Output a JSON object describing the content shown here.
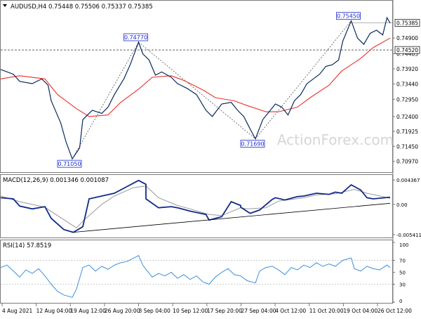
{
  "chart_data": [
    {
      "panel": "price",
      "type": "line",
      "title": "AUDUSD,H4 0.75448 0.75506 0.75337 0.75385",
      "symbol": "AUDUSD,H4",
      "ohlc_readout": [
        "0.75448",
        "0.75506",
        "0.75337",
        "0.75385"
      ],
      "ylim": [
        0.7065,
        0.758
      ],
      "y_ticks": [
        0.7097,
        0.7145,
        0.71925,
        0.724,
        0.7295,
        0.7344,
        0.7392,
        0.74405,
        0.749
      ],
      "y_tick_labels": [
        "0.70970",
        "0.71450",
        "0.71925",
        "0.72400",
        "0.72950",
        "0.73440",
        "0.73920",
        "0.74405",
        "0.74900"
      ],
      "current_price": 0.75385,
      "current_price_label": "0.75385",
      "horizontal_line": {
        "value": 0.7452,
        "label": "0.74520",
        "style": "dashed"
      },
      "annotations": [
        {
          "x": "19 Aug 2021 08:00",
          "value": 0.7105,
          "label": "0.71050"
        },
        {
          "x": "2 Sep 2021 20:00",
          "value": 0.7477,
          "label": "0.74770"
        },
        {
          "x": "29 Sep 2021 08:00",
          "value": 0.7169,
          "label": "0.71690"
        },
        {
          "x": "20 Oct 2021 12:00",
          "value": 0.7545,
          "label": "0.75450"
        }
      ],
      "x_labels": [
        "4 Aug 2021",
        "12 Aug 04:00",
        "19 Aug 12:00",
        "26 Aug 20:00",
        "3 Sep 04:00",
        "10 Sep 12:00",
        "17 Sep 20:00",
        "27 Sep 04:00",
        "4 Oct 12:00",
        "11 Oct 20:00",
        "19 Oct 04:00",
        "26 Oct 12:00"
      ],
      "price_path": [
        {
          "x": "4 Aug 2021 00:00",
          "y": 0.739
        },
        {
          "x": "6 Aug 2021 00:00",
          "y": 0.7375
        },
        {
          "x": "9 Aug 2021 00:00",
          "y": 0.7352
        },
        {
          "x": "11 Aug 2021 00:00",
          "y": 0.7345
        },
        {
          "x": "12 Aug 2021 12:00",
          "y": 0.736
        },
        {
          "x": "13 Aug 2021 12:00",
          "y": 0.734
        },
        {
          "x": "16 Aug 2021 00:00",
          "y": 0.729
        },
        {
          "x": "17 Aug 2021 12:00",
          "y": 0.722
        },
        {
          "x": "18 Aug 2021 08:00",
          "y": 0.716
        },
        {
          "x": "19 Aug 2021 08:00",
          "y": 0.7105
        },
        {
          "x": "20 Aug 2021 12:00",
          "y": 0.714
        },
        {
          "x": "23 Aug 2021 00:00",
          "y": 0.723
        },
        {
          "x": "24 Aug 2021 12:00",
          "y": 0.726
        },
        {
          "x": "26 Aug 2021 00:00",
          "y": 0.725
        },
        {
          "x": "27 Aug 2021 00:00",
          "y": 0.727
        },
        {
          "x": "30 Aug 2021 00:00",
          "y": 0.731
        },
        {
          "x": "31 Aug 2021 12:00",
          "y": 0.736
        },
        {
          "x": "1 Sep 2021 12:00",
          "y": 0.7405
        },
        {
          "x": "2 Sep 2021 20:00",
          "y": 0.7477
        },
        {
          "x": "3 Sep 2021 12:00",
          "y": 0.744
        },
        {
          "x": "6 Sep 2021 12:00",
          "y": 0.742
        },
        {
          "x": "7 Sep 2021 12:00",
          "y": 0.7372
        },
        {
          "x": "8 Sep 2021 12:00",
          "y": 0.7382
        },
        {
          "x": "10 Sep 2021 00:00",
          "y": 0.7365
        },
        {
          "x": "13 Sep 2021 00:00",
          "y": 0.7345
        },
        {
          "x": "14 Sep 2021 12:00",
          "y": 0.733
        },
        {
          "x": "16 Sep 2021 00:00",
          "y": 0.731
        },
        {
          "x": "17 Sep 2021 12:00",
          "y": 0.726
        },
        {
          "x": "20 Sep 2021 12:00",
          "y": 0.724
        },
        {
          "x": "22 Sep 2021 00:00",
          "y": 0.728
        },
        {
          "x": "23 Sep 2021 12:00",
          "y": 0.7285
        },
        {
          "x": "24 Sep 2021 12:00",
          "y": 0.726
        },
        {
          "x": "27 Sep 2021 12:00",
          "y": 0.724
        },
        {
          "x": "28 Sep 2021 12:00",
          "y": 0.72
        },
        {
          "x": "29 Sep 2021 08:00",
          "y": 0.7169
        },
        {
          "x": "30 Sep 2021 12:00",
          "y": 0.723
        },
        {
          "x": "1 Oct 2021 12:00",
          "y": 0.7255
        },
        {
          "x": "4 Oct 2021 12:00",
          "y": 0.728
        },
        {
          "x": "5 Oct 2021 12:00",
          "y": 0.727
        },
        {
          "x": "6 Oct 2021 12:00",
          "y": 0.7245
        },
        {
          "x": "7 Oct 2021 12:00",
          "y": 0.729
        },
        {
          "x": "8 Oct 2021 12:00",
          "y": 0.731
        },
        {
          "x": "11 Oct 2021 12:00",
          "y": 0.7345
        },
        {
          "x": "12 Oct 2021 12:00",
          "y": 0.736
        },
        {
          "x": "13 Oct 2021 12:00",
          "y": 0.7375
        },
        {
          "x": "14 Oct 2021 12:00",
          "y": 0.74
        },
        {
          "x": "15 Oct 2021 12:00",
          "y": 0.7405
        },
        {
          "x": "18 Oct 2021 12:00",
          "y": 0.742
        },
        {
          "x": "19 Oct 2021 04:00",
          "y": 0.748
        },
        {
          "x": "20 Oct 2021 12:00",
          "y": 0.7545
        },
        {
          "x": "21 Oct 2021 12:00",
          "y": 0.749
        },
        {
          "x": "22 Oct 2021 12:00",
          "y": 0.747
        },
        {
          "x": "25 Oct 2021 12:00",
          "y": 0.7505
        },
        {
          "x": "26 Oct 2021 12:00",
          "y": 0.7515
        },
        {
          "x": "27 Oct 2021 12:00",
          "y": 0.75
        },
        {
          "x": "28 Oct 2021 04:00",
          "y": 0.7555
        },
        {
          "x": "28 Oct 2021 16:00",
          "y": 0.7538
        }
      ],
      "moving_average_path": [
        {
          "x": "4 Aug 2021 00:00",
          "y": 0.736
        },
        {
          "x": "9 Aug 2021 00:00",
          "y": 0.737
        },
        {
          "x": "13 Aug 2021 00:00",
          "y": 0.736
        },
        {
          "x": "17 Aug 2021 00:00",
          "y": 0.731
        },
        {
          "x": "20 Aug 2021 00:00",
          "y": 0.7265
        },
        {
          "x": "24 Aug 2021 00:00",
          "y": 0.724
        },
        {
          "x": "27 Aug 2021 00:00",
          "y": 0.7245
        },
        {
          "x": "31 Aug 2021 00:00",
          "y": 0.7285
        },
        {
          "x": "3 Sep 2021 00:00",
          "y": 0.733
        },
        {
          "x": "7 Sep 2021 00:00",
          "y": 0.7365
        },
        {
          "x": "10 Sep 2021 00:00",
          "y": 0.737
        },
        {
          "x": "14 Sep 2021 00:00",
          "y": 0.7355
        },
        {
          "x": "17 Sep 2021 00:00",
          "y": 0.7325
        },
        {
          "x": "21 Sep 2021 00:00",
          "y": 0.73
        },
        {
          "x": "24 Sep 2021 00:00",
          "y": 0.729
        },
        {
          "x": "28 Sep 2021 00:00",
          "y": 0.7275
        },
        {
          "x": "1 Oct 2021 00:00",
          "y": 0.7255
        },
        {
          "x": "5 Oct 2021 00:00",
          "y": 0.7255
        },
        {
          "x": "8 Oct 2021 00:00",
          "y": 0.727
        },
        {
          "x": "12 Oct 2021 00:00",
          "y": 0.73
        },
        {
          "x": "15 Oct 2021 00:00",
          "y": 0.734
        },
        {
          "x": "19 Oct 2021 00:00",
          "y": 0.7385
        },
        {
          "x": "22 Oct 2021 00:00",
          "y": 0.7425
        },
        {
          "x": "26 Oct 2021 00:00",
          "y": 0.746
        },
        {
          "x": "28 Oct 2021 16:00",
          "y": 0.749
        }
      ],
      "colors": {
        "price": "#0a2a5e",
        "moving_average": "#e8322a",
        "price_box": "#1c2bd1",
        "frame": "#7a7a7a"
      },
      "watermark": "ActionForex.com"
    },
    {
      "panel": "macd",
      "type": "line",
      "title": "MACD(12,26,9) 0.001346 0.001087",
      "indicator": "MACD(12,26,9)",
      "readout": [
        "0.001346",
        "0.001087"
      ],
      "ylim": [
        -0.0058,
        0.0049
      ],
      "y_ticks": [
        0.004367,
        0.0,
        -0.005411
      ],
      "y_tick_labels": [
        "0.004367",
        "0.00",
        "-0.005411"
      ],
      "macd_path": [
        {
          "x": "4 Aug 2021 00:00",
          "y": 0.0012
        },
        {
          "x": "6 Aug 2021 00:00",
          "y": 0.001
        },
        {
          "x": "9 Aug 2021 00:00",
          "y": -0.0003
        },
        {
          "x": "11 Aug 2021 00:00",
          "y": -0.0008
        },
        {
          "x": "13 Aug 2021 00:00",
          "y": -0.0004
        },
        {
          "x": "16 Aug 2021 00:00",
          "y": -0.0025
        },
        {
          "x": "18 Aug 2021 00:00",
          "y": -0.0045
        },
        {
          "x": "19 Aug 2021 12:00",
          "y": -0.005
        },
        {
          "x": "21 Aug 2021 00:00",
          "y": -0.004
        },
        {
          "x": "24 Aug 2021 00:00",
          "y": 0.001
        },
        {
          "x": "26 Aug 2021 00:00",
          "y": 0.0015
        },
        {
          "x": "30 Aug 2021 00:00",
          "y": 0.002
        },
        {
          "x": "1 Sep 2021 00:00",
          "y": 0.0032
        },
        {
          "x": "2 Sep 2021 20:00",
          "y": 0.0043
        },
        {
          "x": "4 Sep 2021 00:00",
          "y": 0.0036
        },
        {
          "x": "6 Sep 2021 00:00",
          "y": 0.001
        },
        {
          "x": "8 Sep 2021 00:00",
          "y": -0.0006
        },
        {
          "x": "10 Sep 2021 00:00",
          "y": -0.0004
        },
        {
          "x": "13 Sep 2021 00:00",
          "y": -0.0006
        },
        {
          "x": "15 Sep 2021 00:00",
          "y": -0.0012
        },
        {
          "x": "17 Sep 2021 12:00",
          "y": -0.0018
        },
        {
          "x": "20 Sep 2021 00:00",
          "y": -0.0028
        },
        {
          "x": "22 Sep 2021 00:00",
          "y": -0.0022
        },
        {
          "x": "23 Sep 2021 12:00",
          "y": 0.0005
        },
        {
          "x": "25 Sep 2021 00:00",
          "y": -0.0002
        },
        {
          "x": "27 Sep 2021 00:00",
          "y": -0.0005
        },
        {
          "x": "28 Sep 2021 12:00",
          "y": -0.0016
        },
        {
          "x": "30 Sep 2021 00:00",
          "y": -0.001
        },
        {
          "x": "2 Oct 2021 00:00",
          "y": 0.0009
        },
        {
          "x": "4 Oct 2021 12:00",
          "y": 0.0012
        },
        {
          "x": "6 Oct 2021 00:00",
          "y": 0.0008
        },
        {
          "x": "8 Oct 2021 00:00",
          "y": 0.0014
        },
        {
          "x": "11 Oct 2021 00:00",
          "y": 0.0015
        },
        {
          "x": "13 Oct 2021 00:00",
          "y": 0.002
        },
        {
          "x": "15 Oct 2021 00:00",
          "y": 0.0018
        },
        {
          "x": "17 Oct 2021 00:00",
          "y": 0.0022
        },
        {
          "x": "19 Oct 2021 00:00",
          "y": 0.002
        },
        {
          "x": "20 Oct 2021 12:00",
          "y": 0.0035
        },
        {
          "x": "22 Oct 2021 00:00",
          "y": 0.0026
        },
        {
          "x": "24 Oct 2021 00:00",
          "y": 0.0012
        },
        {
          "x": "26 Oct 2021 00:00",
          "y": 0.001
        },
        {
          "x": "28 Oct 2021 16:00",
          "y": 0.0013
        }
      ],
      "signal_path": [
        {
          "x": "4 Aug 2021 00:00",
          "y": 0.0015
        },
        {
          "x": "9 Aug 2021 00:00",
          "y": 0.0005
        },
        {
          "x": "13 Aug 2021 00:00",
          "y": -0.0005
        },
        {
          "x": "17 Aug 2021 00:00",
          "y": -0.002
        },
        {
          "x": "20 Aug 2021 00:00",
          "y": -0.0042
        },
        {
          "x": "23 Aug 2021 00:00",
          "y": -0.003
        },
        {
          "x": "26 Aug 2021 00:00",
          "y": 0.0
        },
        {
          "x": "30 Aug 2021 00:00",
          "y": 0.0015
        },
        {
          "x": "2 Sep 2021 00:00",
          "y": 0.003
        },
        {
          "x": "5 Sep 2021 00:00",
          "y": 0.0033
        },
        {
          "x": "8 Sep 2021 00:00",
          "y": 0.0012
        },
        {
          "x": "11 Sep 2021 00:00",
          "y": -0.0002
        },
        {
          "x": "15 Sep 2021 00:00",
          "y": -0.0008
        },
        {
          "x": "19 Sep 2021 00:00",
          "y": -0.0018
        },
        {
          "x": "22 Sep 2021 00:00",
          "y": -0.002
        },
        {
          "x": "25 Sep 2021 00:00",
          "y": -0.0006
        },
        {
          "x": "28 Sep 2021 00:00",
          "y": -0.0008
        },
        {
          "x": "1 Oct 2021 00:00",
          "y": -0.0006
        },
        {
          "x": "5 Oct 2021 00:00",
          "y": 0.0006
        },
        {
          "x": "9 Oct 2021 00:00",
          "y": 0.0012
        },
        {
          "x": "13 Oct 2021 00:00",
          "y": 0.0017
        },
        {
          "x": "17 Oct 2021 00:00",
          "y": 0.0019
        },
        {
          "x": "21 Oct 2021 00:00",
          "y": 0.0027
        },
        {
          "x": "24 Oct 2021 00:00",
          "y": 0.002
        },
        {
          "x": "28 Oct 2021 16:00",
          "y": 0.0011
        }
      ],
      "trendline": [
        {
          "x": "19 Aug 2021 12:00",
          "y": -0.005
        },
        {
          "x": "28 Oct 2021 16:00",
          "y": 0.0002
        }
      ],
      "colors": {
        "macd": "#102a8c",
        "signal": "#9a9a9a",
        "trendline": "#000000"
      }
    },
    {
      "panel": "rsi",
      "type": "line",
      "title": "RSI(14) 57.8519",
      "indicator": "RSI(14)",
      "readout": "57.8519",
      "ylim": [
        0,
        100
      ],
      "y_ticks": [
        100,
        70,
        50,
        30,
        0
      ],
      "y_tick_labels": [
        "100",
        "70",
        "50",
        "30",
        "0"
      ],
      "levels": [
        70,
        30
      ],
      "rsi_path": [
        {
          "x": "4 Aug 2021 00:00",
          "y": 58
        },
        {
          "x": "5 Aug 2021 00:00",
          "y": 62
        },
        {
          "x": "6 Aug 2021 00:00",
          "y": 52
        },
        {
          "x": "9 Aug 2021 00:00",
          "y": 42
        },
        {
          "x": "10 Aug 2021 00:00",
          "y": 54
        },
        {
          "x": "11 Aug 2021 00:00",
          "y": 48
        },
        {
          "x": "12 Aug 2021 00:00",
          "y": 56
        },
        {
          "x": "13 Aug 2021 00:00",
          "y": 44
        },
        {
          "x": "16 Aug 2021 00:00",
          "y": 30
        },
        {
          "x": "17 Aug 2021 00:00",
          "y": 18
        },
        {
          "x": "18 Aug 2021 00:00",
          "y": 12
        },
        {
          "x": "19 Aug 2021 08:00",
          "y": 8
        },
        {
          "x": "20 Aug 2021 00:00",
          "y": 22
        },
        {
          "x": "23 Aug 2021 00:00",
          "y": 58
        },
        {
          "x": "24 Aug 2021 00:00",
          "y": 62
        },
        {
          "x": "25 Aug 2021 00:00",
          "y": 52
        },
        {
          "x": "26 Aug 2021 00:00",
          "y": 60
        },
        {
          "x": "27 Aug 2021 00:00",
          "y": 55
        },
        {
          "x": "30 Aug 2021 00:00",
          "y": 62
        },
        {
          "x": "31 Aug 2021 00:00",
          "y": 66
        },
        {
          "x": "1 Sep 2021 00:00",
          "y": 68
        },
        {
          "x": "2 Sep 2021 20:00",
          "y": 78
        },
        {
          "x": "3 Sep 2021 12:00",
          "y": 62
        },
        {
          "x": "6 Sep 2021 00:00",
          "y": 55
        },
        {
          "x": "7 Sep 2021 00:00",
          "y": 42
        },
        {
          "x": "8 Sep 2021 00:00",
          "y": 48
        },
        {
          "x": "9 Sep 2021 00:00",
          "y": 44
        },
        {
          "x": "10 Sep 2021 00:00",
          "y": 50
        },
        {
          "x": "13 Sep 2021 00:00",
          "y": 40
        },
        {
          "x": "14 Sep 2021 00:00",
          "y": 46
        },
        {
          "x": "15 Sep 2021 00:00",
          "y": 38
        },
        {
          "x": "16 Sep 2021 00:00",
          "y": 44
        },
        {
          "x": "17 Sep 2021 00:00",
          "y": 34
        },
        {
          "x": "20 Sep 2021 00:00",
          "y": 30
        },
        {
          "x": "21 Sep 2021 00:00",
          "y": 42
        },
        {
          "x": "22 Sep 2021 00:00",
          "y": 50
        },
        {
          "x": "23 Sep 2021 00:00",
          "y": 56
        },
        {
          "x": "24 Sep 2021 00:00",
          "y": 46
        },
        {
          "x": "27 Sep 2021 00:00",
          "y": 44
        },
        {
          "x": "28 Sep 2021 00:00",
          "y": 36
        },
        {
          "x": "29 Sep 2021 08:00",
          "y": 32
        },
        {
          "x": "30 Sep 2021 00:00",
          "y": 52
        },
        {
          "x": "1 Oct 2021 00:00",
          "y": 58
        },
        {
          "x": "4 Oct 2021 00:00",
          "y": 60
        },
        {
          "x": "5 Oct 2021 00:00",
          "y": 54
        },
        {
          "x": "6 Oct 2021 00:00",
          "y": 46
        },
        {
          "x": "7 Oct 2021 00:00",
          "y": 58
        },
        {
          "x": "8 Oct 2021 00:00",
          "y": 54
        },
        {
          "x": "11 Oct 2021 00:00",
          "y": 62
        },
        {
          "x": "12 Oct 2021 00:00",
          "y": 58
        },
        {
          "x": "13 Oct 2021 00:00",
          "y": 66
        },
        {
          "x": "14 Oct 2021 00:00",
          "y": 60
        },
        {
          "x": "15 Oct 2021 00:00",
          "y": 64
        },
        {
          "x": "18 Oct 2021 00:00",
          "y": 60
        },
        {
          "x": "19 Oct 2021 04:00",
          "y": 70
        },
        {
          "x": "20 Oct 2021 12:00",
          "y": 74
        },
        {
          "x": "21 Oct 2021 00:00",
          "y": 56
        },
        {
          "x": "22 Oct 2021 00:00",
          "y": 52
        },
        {
          "x": "25 Oct 2021 00:00",
          "y": 60
        },
        {
          "x": "26 Oct 2021 00:00",
          "y": 56
        },
        {
          "x": "27 Oct 2021 00:00",
          "y": 54
        },
        {
          "x": "28 Oct 2021 04:00",
          "y": 62
        },
        {
          "x": "28 Oct 2021 16:00",
          "y": 57.85
        }
      ],
      "colors": {
        "rsi": "#3a8fe0",
        "levels": "#bdbdbd"
      }
    }
  ]
}
